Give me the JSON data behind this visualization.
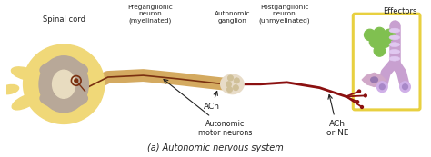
{
  "fig_title": "(a) Autonomic nervous system",
  "title_fontsize": 7,
  "labels": {
    "spinal_cord": "Spinal cord",
    "preganglionic": "Preganglionic\nneuron\n(myelinated)",
    "auto_motor": "Autonomic\nmotor neurons",
    "ach_label": "ACh",
    "auto_ganglion": "Autonomic\nganglion",
    "postganglionic": "Postganglionic\nneuron\n(unmyelinated)",
    "ach_ne": "ACh\nor NE",
    "effectors": "Effectors"
  },
  "colors": {
    "bg_color": "#ffffff",
    "spinal_cord_outer": "#f0d878",
    "spinal_gray": "#b8a898",
    "spinal_white": "#e8dcc0",
    "nerve_tan": "#d4aa60",
    "nerve_dark": "#7a3010",
    "ganglion_fill": "#e8dcc8",
    "ganglion_border": "#c8aa80",
    "effector_purple": "#c8a0d0",
    "effector_yellow": "#e8d040",
    "cell_green": "#80c050",
    "cell_border": "#50a030",
    "neuron_spindle": "#d0a8c8",
    "post_nerve": "#8B1010",
    "text_color": "#222222",
    "arrow_color": "#222222"
  }
}
